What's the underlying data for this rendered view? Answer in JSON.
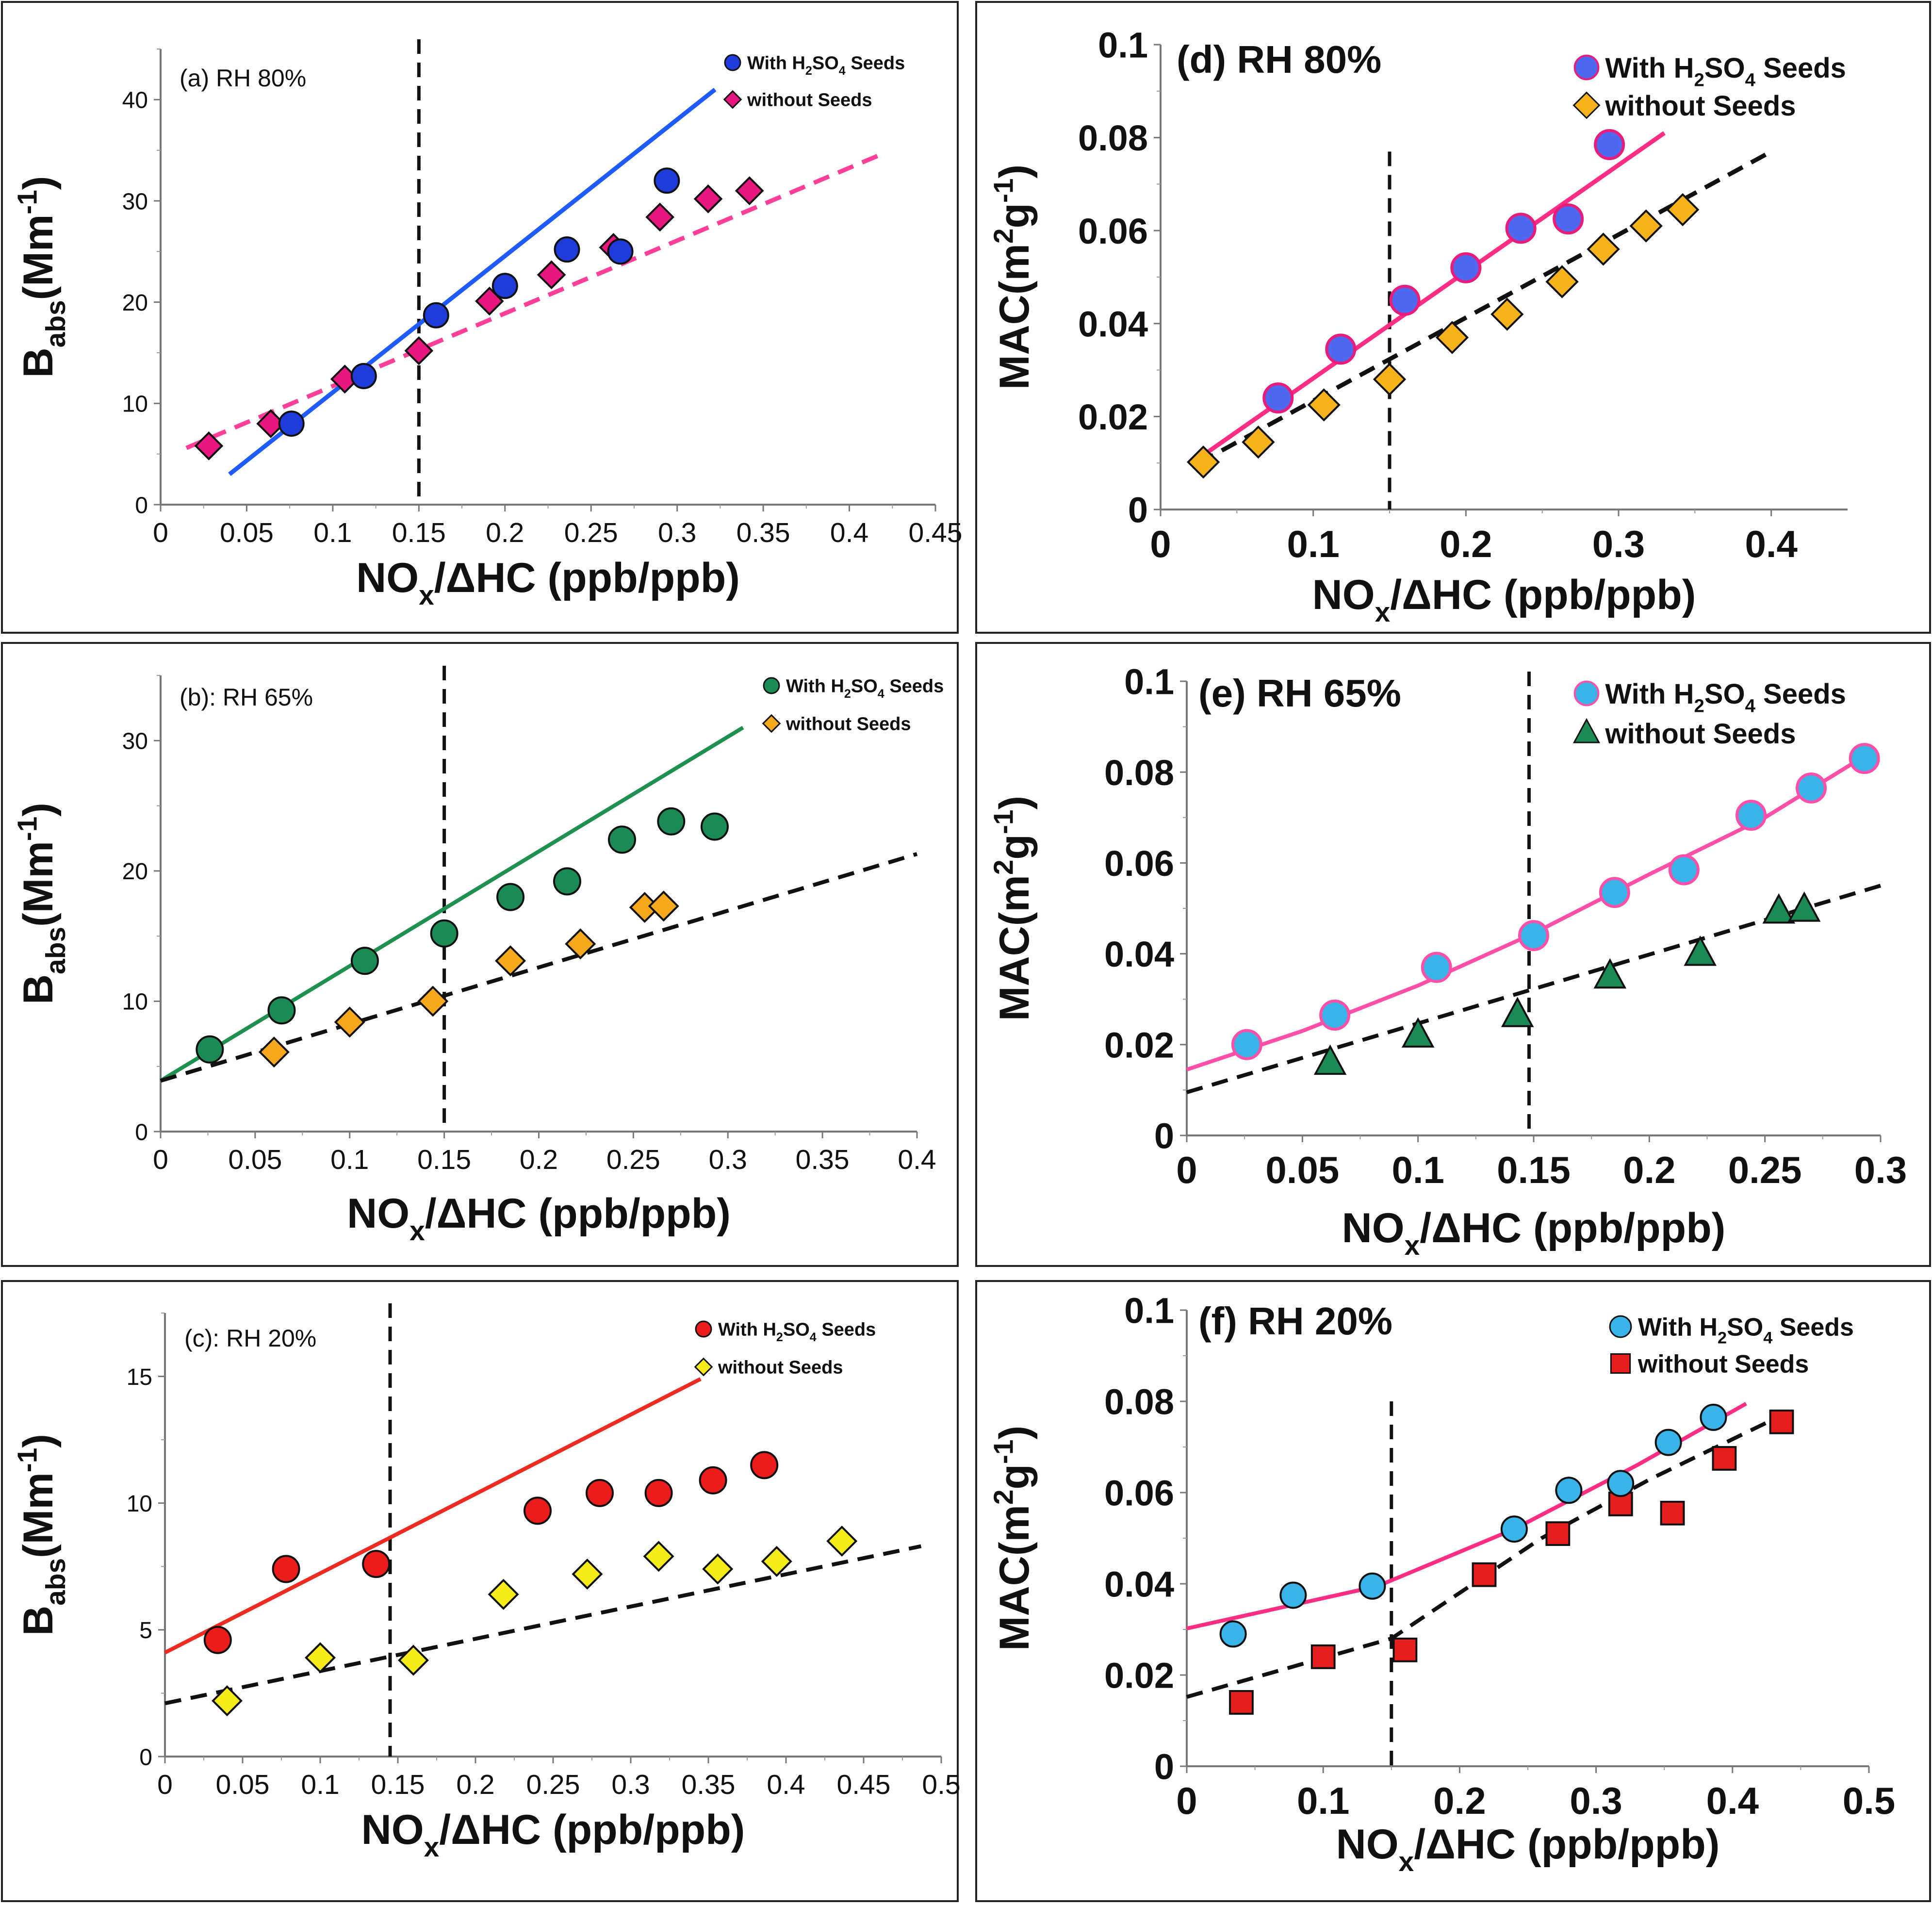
{
  "chart_data": [
    {
      "panel": "a",
      "type": "scatter",
      "title": "(a) RH 80%",
      "xlabel": "NOx/ΔHC (ppb/ppb)",
      "ylabel": "Babs(Mm-1)",
      "xlim": [
        0,
        0.45
      ],
      "ylim": [
        0,
        45
      ],
      "xticks": [
        "0",
        "0.05",
        "0.1",
        "0.15",
        "0.2",
        "0.25",
        "0.3",
        "0.35",
        "0.4",
        "0.45"
      ],
      "yticks": [
        "0",
        "10",
        "20",
        "30",
        "40"
      ],
      "vline_x": 0.15,
      "legend": [
        "With H2SO4 Seeds",
        "without Seeds"
      ],
      "series": [
        {
          "name": "With H2SO4 Seeds",
          "marker": "circle",
          "color": "#1f3bd9",
          "x": [
            0.076,
            0.118,
            0.16,
            0.2,
            0.236,
            0.267,
            0.294
          ],
          "y": [
            8,
            12.7,
            18.7,
            21.6,
            25.2,
            25,
            32
          ],
          "fit": {
            "x0": 0.04,
            "y0": 3,
            "x1": 0.322,
            "y1": 41,
            "style": "solid",
            "color": "#1f5bff"
          }
        },
        {
          "name": "without Seeds",
          "marker": "diamond",
          "color": "#e8177f",
          "x": [
            0.028,
            0.064,
            0.107,
            0.15,
            0.191,
            0.227,
            0.263,
            0.29,
            0.318,
            0.342
          ],
          "y": [
            5.8,
            8,
            12.4,
            15.2,
            20.1,
            22.7,
            25.4,
            28.4,
            30.2,
            31
          ],
          "fit": {
            "x0": 0.015,
            "y0": 5.6,
            "x1": 0.42,
            "y1": 34.7,
            "style": "dashed",
            "color": "#ff3f98"
          }
        }
      ]
    },
    {
      "panel": "b",
      "type": "scatter",
      "title": "(b): RH 65%",
      "xlabel": "NOx/ΔHC (ppb/ppb)",
      "ylabel": "Babs(Mm-1)",
      "xlim": [
        0,
        0.4
      ],
      "ylim": [
        0,
        35
      ],
      "xticks": [
        "0",
        "0.05",
        "0.1",
        "0.15",
        "0.2",
        "0.25",
        "0.3",
        "0.35",
        "0.4"
      ],
      "yticks": [
        "0",
        "10",
        "20",
        "30"
      ],
      "vline_x": 0.15,
      "legend": [
        "With H2SO4 Seeds",
        "without Seeds"
      ],
      "series": [
        {
          "name": "With H2SO4 Seeds",
          "marker": "circle",
          "color": "#1b8a55",
          "x": [
            0.026,
            0.064,
            0.108,
            0.15,
            0.185,
            0.215,
            0.244,
            0.27,
            0.293
          ],
          "y": [
            6.3,
            9.3,
            13.1,
            15.2,
            18,
            19.2,
            22.4,
            23.8,
            23.4
          ],
          "fit": {
            "x0": 0.0,
            "y0": 3.9,
            "x1": 0.308,
            "y1": 31,
            "style": "solid",
            "color": "#1f9050"
          }
        },
        {
          "name": "without Seeds",
          "marker": "diamond",
          "color": "#f5a81c",
          "x": [
            0.06,
            0.1,
            0.144,
            0.185,
            0.222,
            0.256,
            0.266
          ],
          "y": [
            6.1,
            8.4,
            10,
            13.1,
            14.4,
            17.2,
            17.3
          ],
          "fit": {
            "x0": 0.0,
            "y0": 3.9,
            "x1": 0.4,
            "y1": 21.3,
            "style": "dashed",
            "color": "#111111"
          }
        }
      ]
    },
    {
      "panel": "c",
      "type": "scatter",
      "title": "(c): RH 20%",
      "xlabel": "NOx/ΔHC (ppb/ppb)",
      "ylabel": "Babs(Mm-1)",
      "xlim": [
        0,
        0.5
      ],
      "ylim": [
        0,
        17.5
      ],
      "xticks": [
        "0",
        "0.05",
        "0.1",
        "0.15",
        "0.2",
        "0.25",
        "0.3",
        "0.35",
        "0.4",
        "0.45",
        "0.5"
      ],
      "yticks": [
        "0",
        "5",
        "10",
        "15"
      ],
      "vline_x": 0.145,
      "legend": [
        "With H2SO4 Seeds",
        "without Seeds"
      ],
      "series": [
        {
          "name": "With H2SO4 Seeds",
          "marker": "circle",
          "color": "#ea1c1c",
          "x": [
            0.034,
            0.078,
            0.136,
            0.24,
            0.28,
            0.318,
            0.353,
            0.386
          ],
          "y": [
            4.6,
            7.4,
            7.6,
            9.7,
            10.4,
            10.4,
            10.9,
            11.5
          ],
          "fit": {
            "x0": 0.0,
            "y0": 4.1,
            "x1": 0.345,
            "y1": 14.9,
            "style": "solid",
            "color": "#ee2b20"
          }
        },
        {
          "name": "without Seeds",
          "marker": "diamond",
          "color": "#f6ec1a",
          "x": [
            0.04,
            0.1,
            0.16,
            0.218,
            0.272,
            0.318,
            0.356,
            0.394,
            0.436
          ],
          "y": [
            2.2,
            3.9,
            3.8,
            6.4,
            7.2,
            7.9,
            7.4,
            7.7,
            8.5
          ],
          "fit": {
            "x0": 0.0,
            "y0": 2.1,
            "x1": 0.487,
            "y1": 8.3,
            "style": "dashed",
            "color": "#111111"
          }
        }
      ]
    },
    {
      "panel": "d",
      "type": "scatter",
      "title": "(d) RH 80%",
      "xlabel": "NOx/ΔHC  (ppb/ppb)",
      "ylabel": "MAC(m2g-1)",
      "xlim": [
        0,
        0.45
      ],
      "ylim": [
        0,
        0.1
      ],
      "xticks": [
        "0",
        "0.1",
        "0.2",
        "0.3",
        "0.4"
      ],
      "xtick_values": [
        0,
        0.1,
        0.2,
        0.3,
        0.4
      ],
      "yticks": [
        "0",
        "0.02",
        "0.04",
        "0.06",
        "0.08",
        "0.1"
      ],
      "vline_x": 0.15,
      "vline_ymax": 0.077,
      "legend": [
        "With H2SO4 Seeds",
        "without Seeds"
      ],
      "series": [
        {
          "name": "With H2SO4 Seeds",
          "marker": "circle",
          "color": "#4f68f0",
          "edge": "#e81c7a",
          "x": [
            0.077,
            0.118,
            0.16,
            0.2,
            0.236,
            0.267,
            0.294
          ],
          "y": [
            0.024,
            0.0345,
            0.045,
            0.052,
            0.0605,
            0.0625,
            0.0785
          ],
          "fit": {
            "x0": 0.025,
            "y0": 0.011,
            "x1": 0.33,
            "y1": 0.081,
            "style": "solid",
            "color": "#ff2d84"
          }
        },
        {
          "name": "without Seeds",
          "marker": "diamond",
          "color": "#f6b21a",
          "x": [
            0.028,
            0.064,
            0.107,
            0.15,
            0.191,
            0.227,
            0.263,
            0.29,
            0.318,
            0.342
          ],
          "y": [
            0.0102,
            0.0145,
            0.0225,
            0.028,
            0.037,
            0.042,
            0.049,
            0.056,
            0.061,
            0.0645
          ],
          "fit": {
            "x0": 0.025,
            "y0": 0.01,
            "x1": 0.4,
            "y1": 0.077,
            "style": "dashed",
            "color": "#111111"
          }
        }
      ]
    },
    {
      "panel": "e",
      "type": "scatter",
      "title": "(e) RH 65%",
      "xlabel": "NOx/ΔHC (ppb/ppb)",
      "ylabel": "MAC(m2g-1)",
      "xlim": [
        0,
        0.3
      ],
      "ylim": [
        0,
        0.1
      ],
      "xticks": [
        "0",
        "0.05",
        "0.1",
        "0.15",
        "0.2",
        "0.25",
        "0.3"
      ],
      "yticks": [
        "0",
        "0.02",
        "0.04",
        "0.06",
        "0.08",
        "0.1"
      ],
      "vline_x": 0.148,
      "legend": [
        "With H2SO4 Seeds",
        "without Seeds"
      ],
      "series": [
        {
          "name": "With H2SO4 Seeds",
          "marker": "circle",
          "color": "#39b3e8",
          "edge": "#ff4fa6",
          "x": [
            0.026,
            0.064,
            0.108,
            0.15,
            0.185,
            0.215,
            0.244,
            0.27,
            0.293
          ],
          "y": [
            0.02,
            0.0265,
            0.037,
            0.044,
            0.0535,
            0.0585,
            0.0705,
            0.0765,
            0.083
          ],
          "fit": {
            "points": [
              [
                0,
                0.0145
              ],
              [
                0.05,
                0.023
              ],
              [
                0.1,
                0.033
              ],
              [
                0.15,
                0.0445
              ],
              [
                0.2,
                0.0575
              ],
              [
                0.25,
                0.07
              ],
              [
                0.293,
                0.0835
              ]
            ],
            "style": "solid",
            "color": "#ff4fa6"
          }
        },
        {
          "name": "without Seeds",
          "marker": "triangle",
          "color": "#1b8a55",
          "x": [
            0.062,
            0.1,
            0.143,
            0.183,
            0.222,
            0.256,
            0.267
          ],
          "y": [
            0.016,
            0.022,
            0.0265,
            0.035,
            0.04,
            0.0493,
            0.0497
          ],
          "fit": {
            "x0": 0.0,
            "y0": 0.0095,
            "x1": 0.3,
            "y1": 0.055,
            "style": "dashed",
            "color": "#111111"
          }
        }
      ]
    },
    {
      "panel": "f",
      "type": "scatter",
      "title": "(f) RH 20%",
      "xlabel": "NOx/ΔHC (ppb/ppb)",
      "ylabel": "MAC(m2g-1)",
      "xlim": [
        0,
        0.5
      ],
      "ylim": [
        0,
        0.1
      ],
      "xticks": [
        "0",
        "0.1",
        "0.2",
        "0.3",
        "0.4",
        "0.5"
      ],
      "yticks": [
        "0",
        "0.02",
        "0.04",
        "0.06",
        "0.08",
        "0.1"
      ],
      "vline_x": 0.15,
      "vline_ymax": 0.08,
      "legend": [
        "With H2SO4 Seeds",
        "without Seeds"
      ],
      "series": [
        {
          "name": "With H2SO4 Seeds",
          "marker": "circle",
          "color": "#39b3e8",
          "x": [
            0.034,
            0.078,
            0.136,
            0.24,
            0.28,
            0.318,
            0.353,
            0.386
          ],
          "y": [
            0.029,
            0.0375,
            0.0395,
            0.052,
            0.0605,
            0.062,
            0.071,
            0.0765
          ],
          "fit": {
            "points": [
              [
                0,
                0.0302
              ],
              [
                0.14,
                0.0395
              ],
              [
                0.24,
                0.052
              ],
              [
                0.33,
                0.066
              ],
              [
                0.41,
                0.0795
              ]
            ],
            "style": "solid",
            "color": "#ff2d84"
          }
        },
        {
          "name": "without Seeds",
          "marker": "square",
          "color": "#e61e1e",
          "x": [
            0.04,
            0.1,
            0.16,
            0.218,
            0.272,
            0.318,
            0.356,
            0.394,
            0.436
          ],
          "y": [
            0.014,
            0.024,
            0.0255,
            0.042,
            0.051,
            0.0575,
            0.0555,
            0.0675,
            0.0755
          ],
          "fit": {
            "points": [
              [
                0,
                0.0152
              ],
              [
                0.15,
                0.028
              ],
              [
                0.26,
                0.05
              ],
              [
                0.34,
                0.063
              ],
              [
                0.44,
                0.0775
              ]
            ],
            "style": "dashed",
            "color": "#111111"
          }
        }
      ]
    }
  ]
}
